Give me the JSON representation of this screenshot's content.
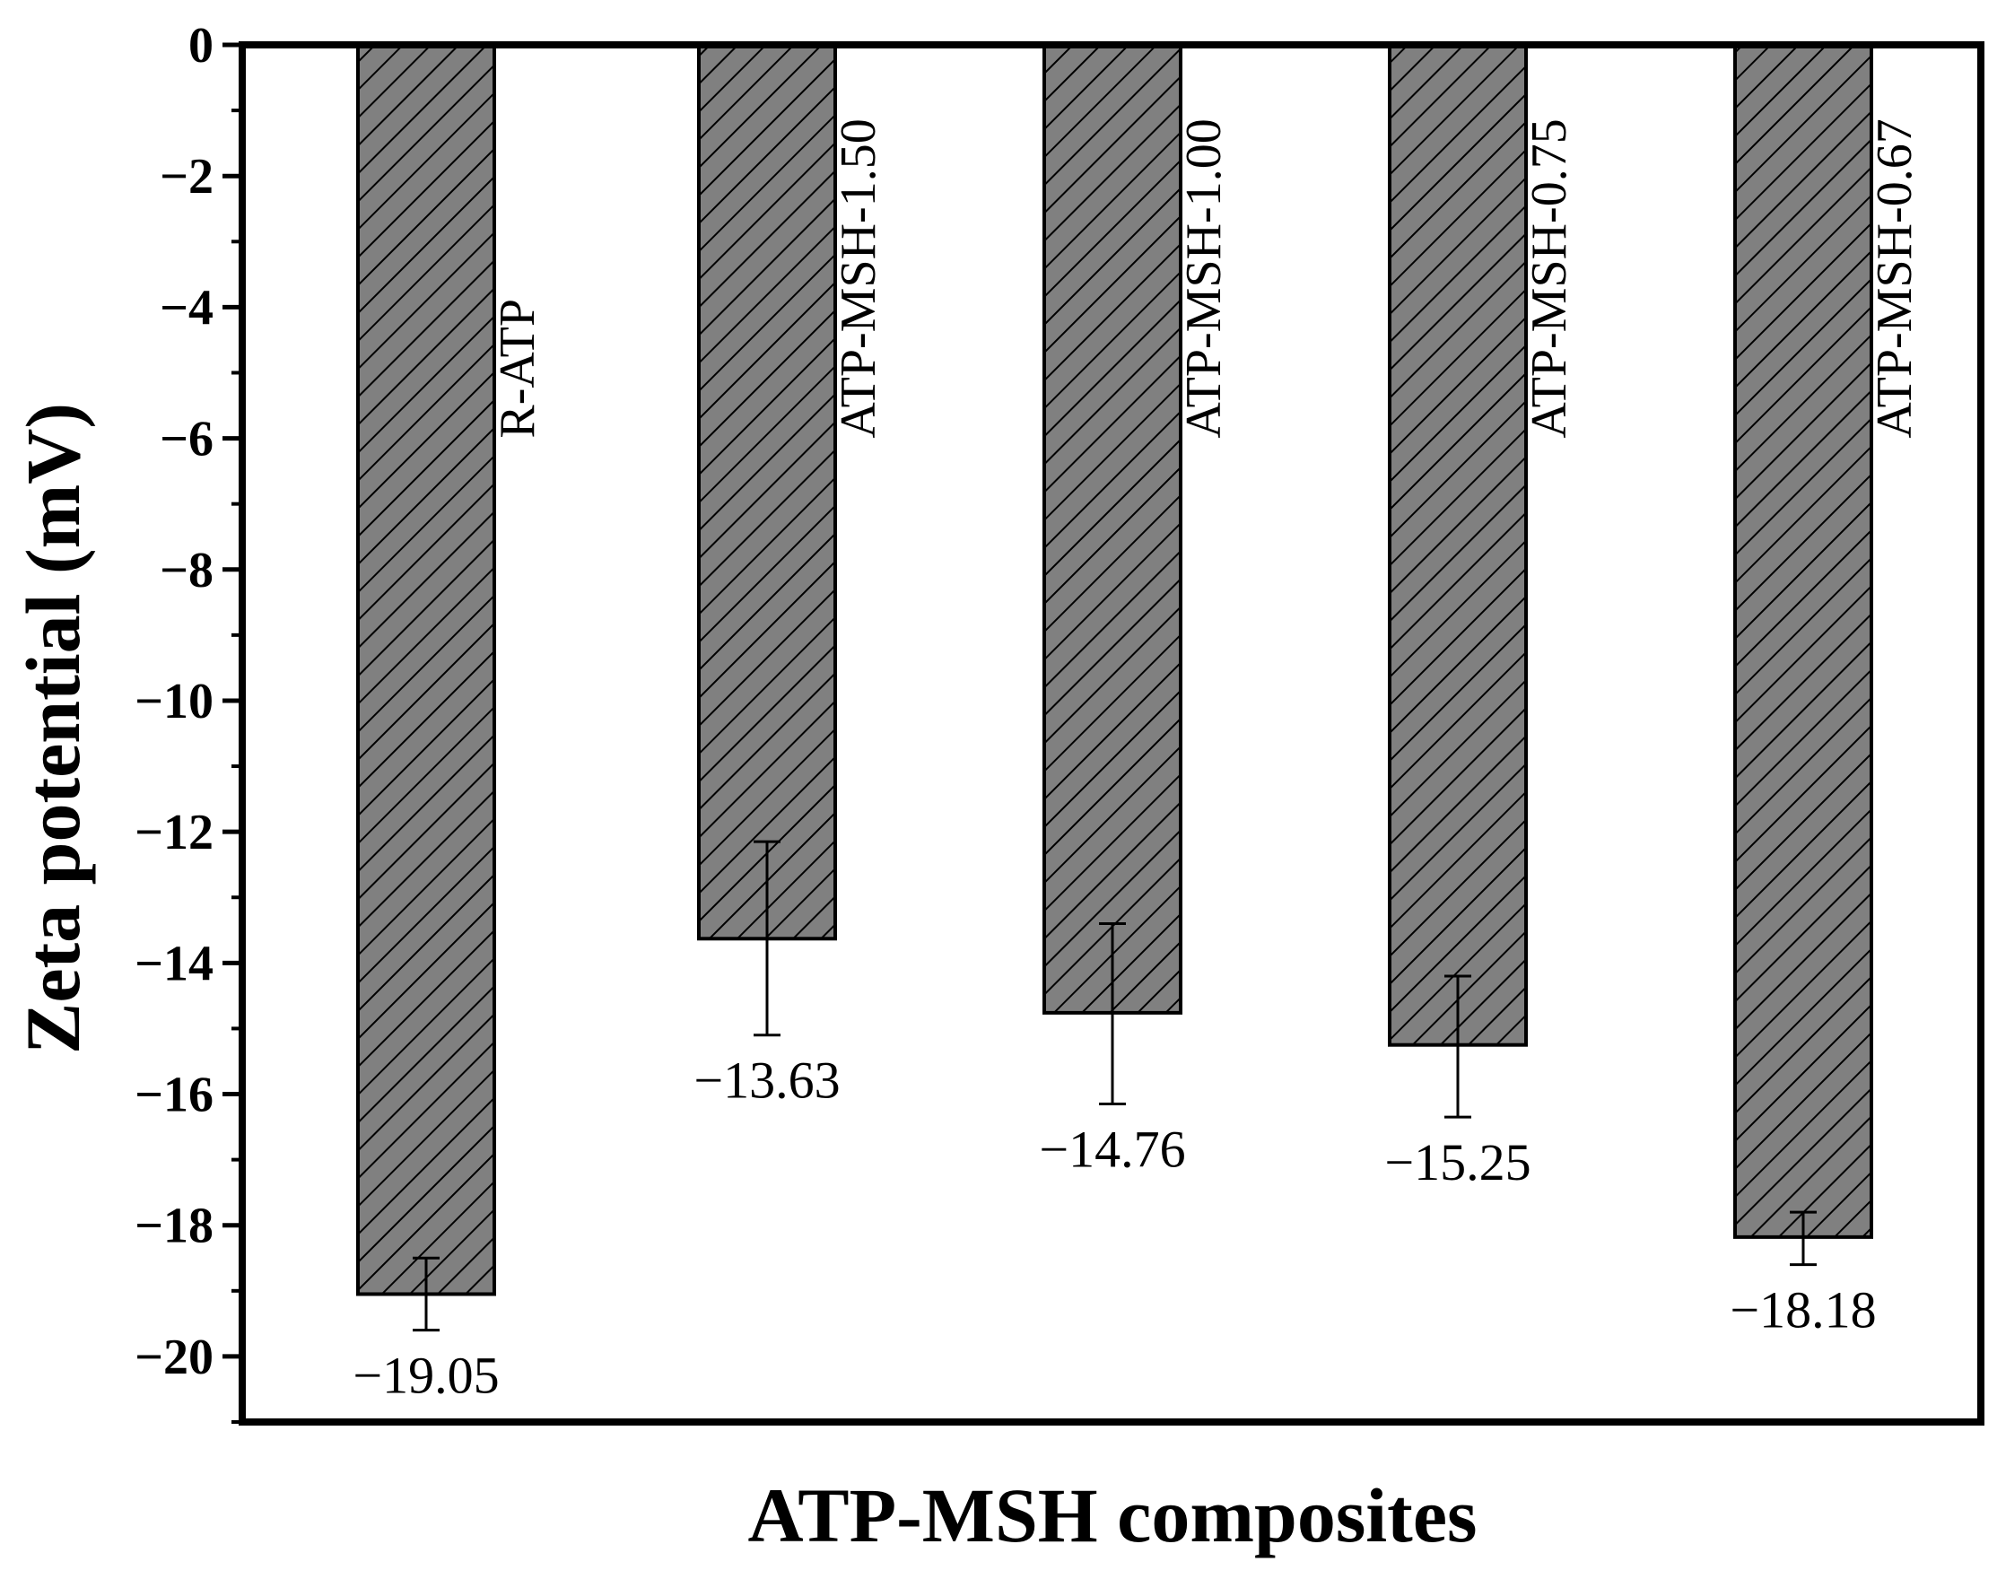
{
  "chart_data": {
    "type": "bar",
    "categories": [
      "R-ATP",
      "ATP-MSH-1.50",
      "ATP-MSH-1.00",
      "ATP-MSH-0.75",
      "ATP-MSH-0.67"
    ],
    "values": [
      -19.05,
      -13.63,
      -14.76,
      -15.25,
      -18.18
    ],
    "errors": [
      [
        -19.6,
        -18.5
      ],
      [
        -15.1,
        -12.15
      ],
      [
        -16.15,
        -13.4
      ],
      [
        -16.35,
        -14.2
      ],
      [
        -18.6,
        -17.8
      ]
    ],
    "value_labels": [
      "−19.05",
      "−13.63",
      "−14.76",
      "−15.25",
      "−18.18"
    ],
    "xlabel": "ATP-MSH composites",
    "ylabel": "Zeta potential (mV)",
    "ylim": [
      -21,
      0
    ],
    "yticks": [
      0,
      -2,
      -4,
      -6,
      -8,
      -10,
      -12,
      -14,
      -16,
      -18,
      -20
    ],
    "ytick_labels": [
      "0",
      "−2",
      "−4",
      "−6",
      "−8",
      "−10",
      "−12",
      "−14",
      "−16",
      "−18",
      "−20"
    ],
    "grid": false,
    "legend": "none",
    "bar_fill": "#808080",
    "bar_pattern": "diagonal-hatch"
  }
}
